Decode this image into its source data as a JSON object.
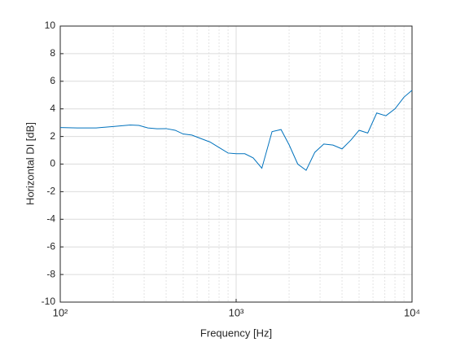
{
  "chart_data": {
    "type": "line",
    "xlabel": "Frequency [Hz]",
    "ylabel": "Horizontal DI [dB]",
    "xscale": "log",
    "grid": true,
    "color": "#0072bd",
    "xlim": [
      100,
      10000
    ],
    "ylim": [
      -10,
      10
    ],
    "xticks": [
      {
        "value": 100,
        "label": "10²"
      },
      {
        "value": 1000,
        "label": "10³"
      },
      {
        "value": 10000,
        "label": "10⁴"
      }
    ],
    "xminorticks": [
      200,
      300,
      400,
      500,
      600,
      700,
      800,
      900,
      2000,
      3000,
      4000,
      5000,
      6000,
      7000,
      8000,
      9000
    ],
    "yticks": [
      -10,
      -8,
      -6,
      -4,
      -2,
      0,
      2,
      4,
      6,
      8,
      10
    ],
    "x": [
      100,
      125,
      160,
      200,
      250,
      280,
      315,
      355,
      400,
      450,
      500,
      560,
      630,
      710,
      800,
      900,
      1000,
      1120,
      1250,
      1400,
      1600,
      1800,
      2000,
      2240,
      2500,
      2800,
      3150,
      3550,
      4000,
      4500,
      5000,
      5600,
      6300,
      7100,
      8000,
      9000,
      10000
    ],
    "values": [
      2.65,
      2.62,
      2.62,
      2.72,
      2.83,
      2.8,
      2.62,
      2.56,
      2.57,
      2.45,
      2.18,
      2.1,
      1.85,
      1.6,
      1.2,
      0.8,
      0.75,
      0.75,
      0.45,
      -0.3,
      2.35,
      2.5,
      1.4,
      0.0,
      -0.45,
      0.85,
      1.45,
      1.38,
      1.1,
      1.75,
      2.45,
      2.25,
      3.7,
      3.5,
      4.0,
      4.85,
      5.35
    ]
  }
}
